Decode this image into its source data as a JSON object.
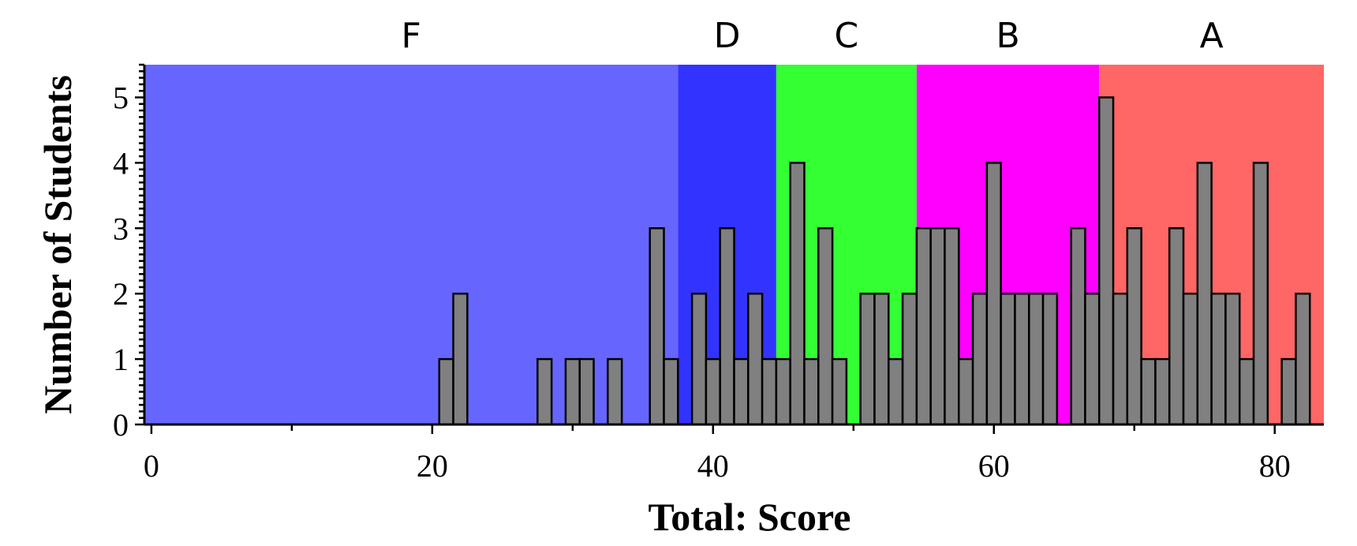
{
  "chart_data": {
    "type": "bar",
    "xlabel": "Total: Score",
    "ylabel": "Number of Students",
    "xlim": [
      -0.5,
      83.5
    ],
    "ylim": [
      0,
      5.5
    ],
    "x_ticks": [
      0,
      20,
      40,
      60,
      80
    ],
    "y_ticks": [
      0,
      1,
      2,
      3,
      4,
      5
    ],
    "bin_width": 1,
    "grade_bands": [
      {
        "label": "F",
        "start": -0.5,
        "end": 37.5,
        "color": "#6666ff"
      },
      {
        "label": "D",
        "start": 37.5,
        "end": 44.5,
        "color": "#3333ff"
      },
      {
        "label": "C",
        "start": 44.5,
        "end": 54.5,
        "color": "#33ff33"
      },
      {
        "label": "B",
        "start": 54.5,
        "end": 67.5,
        "color": "#ff00ff"
      },
      {
        "label": "A",
        "start": 67.5,
        "end": 83.5,
        "color": "#ff6666"
      }
    ],
    "bars": [
      {
        "x": 21,
        "count": 1
      },
      {
        "x": 22,
        "count": 2
      },
      {
        "x": 28,
        "count": 1
      },
      {
        "x": 30,
        "count": 1
      },
      {
        "x": 31,
        "count": 1
      },
      {
        "x": 33,
        "count": 1
      },
      {
        "x": 36,
        "count": 3
      },
      {
        "x": 37,
        "count": 1
      },
      {
        "x": 39,
        "count": 2
      },
      {
        "x": 40,
        "count": 1
      },
      {
        "x": 41,
        "count": 3
      },
      {
        "x": 42,
        "count": 1
      },
      {
        "x": 43,
        "count": 2
      },
      {
        "x": 44,
        "count": 1
      },
      {
        "x": 45,
        "count": 1
      },
      {
        "x": 46,
        "count": 4
      },
      {
        "x": 47,
        "count": 1
      },
      {
        "x": 48,
        "count": 3
      },
      {
        "x": 49,
        "count": 1
      },
      {
        "x": 51,
        "count": 2
      },
      {
        "x": 52,
        "count": 2
      },
      {
        "x": 53,
        "count": 1
      },
      {
        "x": 54,
        "count": 2
      },
      {
        "x": 55,
        "count": 3
      },
      {
        "x": 56,
        "count": 3
      },
      {
        "x": 57,
        "count": 3
      },
      {
        "x": 58,
        "count": 1
      },
      {
        "x": 59,
        "count": 2
      },
      {
        "x": 60,
        "count": 4
      },
      {
        "x": 61,
        "count": 2
      },
      {
        "x": 62,
        "count": 2
      },
      {
        "x": 63,
        "count": 2
      },
      {
        "x": 64,
        "count": 2
      },
      {
        "x": 66,
        "count": 3
      },
      {
        "x": 67,
        "count": 2
      },
      {
        "x": 68,
        "count": 5
      },
      {
        "x": 69,
        "count": 2
      },
      {
        "x": 70,
        "count": 3
      },
      {
        "x": 71,
        "count": 1
      },
      {
        "x": 72,
        "count": 1
      },
      {
        "x": 73,
        "count": 3
      },
      {
        "x": 74,
        "count": 2
      },
      {
        "x": 75,
        "count": 4
      },
      {
        "x": 76,
        "count": 2
      },
      {
        "x": 77,
        "count": 2
      },
      {
        "x": 78,
        "count": 1
      },
      {
        "x": 79,
        "count": 4
      },
      {
        "x": 81,
        "count": 1
      },
      {
        "x": 82,
        "count": 2
      }
    ]
  }
}
